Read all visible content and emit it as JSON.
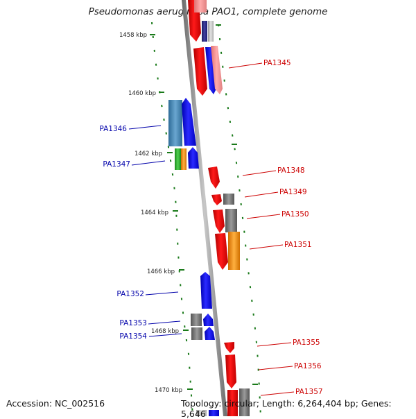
{
  "title": "Pseudomonas aeruginosa PAO1, complete genome",
  "footer": {
    "accession": "Accession: NC_002516",
    "info": "Topology: circular; Length: 6,264,404 bp; Genes: 5,646"
  },
  "colors": {
    "forward_label": "#cc0000",
    "reverse_label": "#0000aa",
    "tick": "#1a7a1a",
    "axis": "#888888"
  },
  "scale_labels": [
    "1458 kbp",
    "1460 kbp",
    "1462 kbp",
    "1464 kbp",
    "1466 kbp",
    "1468 kbp",
    "1470 kbp"
  ],
  "gene_labels": [
    {
      "text": "PA1345",
      "strand": "forward"
    },
    {
      "text": "PA1346",
      "strand": "reverse"
    },
    {
      "text": "PA1347",
      "strand": "reverse"
    },
    {
      "text": "PA1348",
      "strand": "forward"
    },
    {
      "text": "PA1349",
      "strand": "forward"
    },
    {
      "text": "PA1350",
      "strand": "forward"
    },
    {
      "text": "PA1351",
      "strand": "forward"
    },
    {
      "text": "PA1352",
      "strand": "reverse"
    },
    {
      "text": "PA1353",
      "strand": "reverse"
    },
    {
      "text": "PA1354",
      "strand": "reverse"
    },
    {
      "text": "PA1355",
      "strand": "forward"
    },
    {
      "text": "PA1356",
      "strand": "forward"
    },
    {
      "text": "PA1357",
      "strand": "forward"
    }
  ]
}
